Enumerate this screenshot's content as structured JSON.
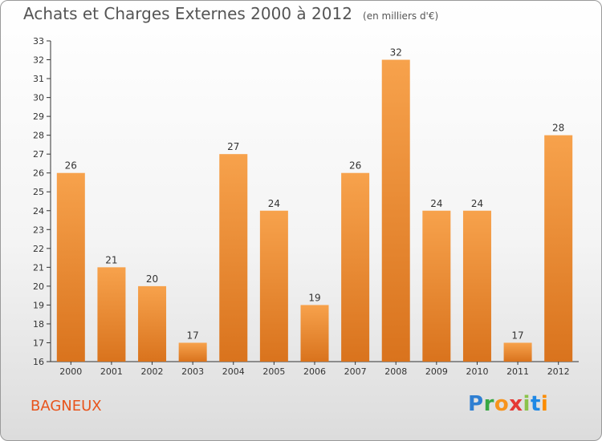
{
  "header": {
    "title": "Achats et Charges Externes 2000 à 2012",
    "unit": "(en milliers d'€)"
  },
  "footer": {
    "city": "BAGNEUX",
    "brand": "Proxiti"
  },
  "colors": {
    "bar_light": "#f7a24c",
    "bar_dark": "#d9731d",
    "axis": "#333333",
    "grid": "#dddddd",
    "city": "#e8541c"
  },
  "chart_data": {
    "type": "bar",
    "title": "Achats et Charges Externes 2000 à 2012",
    "subtitle": "(en milliers d'€)",
    "categories": [
      "2000",
      "2001",
      "2002",
      "2003",
      "2004",
      "2005",
      "2006",
      "2007",
      "2008",
      "2009",
      "2010",
      "2011",
      "2012"
    ],
    "values": [
      26,
      21,
      20,
      17,
      27,
      24,
      19,
      26,
      32,
      24,
      24,
      17,
      28
    ],
    "ylim": [
      16,
      33
    ],
    "yticks": [
      16,
      17,
      18,
      19,
      20,
      21,
      22,
      23,
      24,
      25,
      26,
      27,
      28,
      29,
      30,
      31,
      32,
      33
    ],
    "grid": false,
    "data_labels": true
  }
}
